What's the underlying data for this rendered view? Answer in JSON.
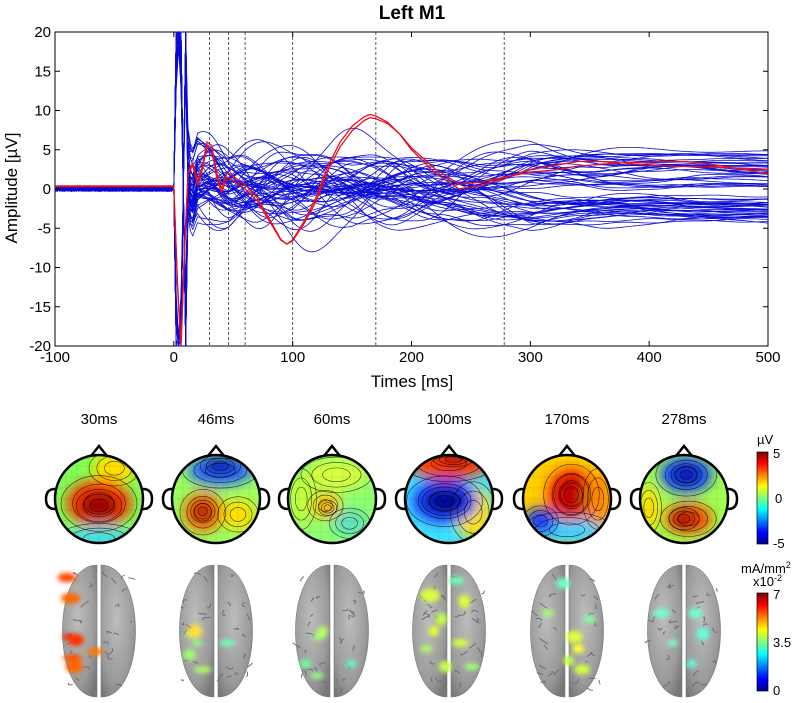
{
  "chart_data": [
    {
      "type": "line",
      "title": "Left M1",
      "xlabel": "Times [ms]",
      "ylabel": "Amplitude [µV]",
      "xlim": [
        -100,
        500
      ],
      "ylim": [
        -20,
        20
      ],
      "xticks": [
        -100,
        0,
        100,
        200,
        300,
        400,
        500
      ],
      "yticks": [
        -20,
        -15,
        -10,
        -5,
        0,
        5,
        10,
        15,
        20
      ],
      "grid": false,
      "markers_ms": [
        30,
        46,
        60,
        100,
        170,
        278
      ],
      "series": [
        {
          "color": "#e8101a",
          "x": [
            -100,
            -50,
            -5,
            0,
            3,
            6,
            9,
            12,
            16,
            20,
            24,
            28,
            32,
            36,
            40,
            45,
            50,
            55,
            60,
            70,
            80,
            90,
            95,
            100,
            110,
            120,
            130,
            140,
            150,
            160,
            165,
            170,
            180,
            190,
            200,
            220,
            240,
            260,
            280,
            300,
            320,
            340,
            360,
            380,
            400,
            450,
            500
          ],
          "y": [
            0.3,
            0.3,
            0.3,
            0.3,
            -12,
            -20,
            -8,
            2,
            3,
            0.5,
            2.5,
            5.5,
            5,
            1.5,
            -0.5,
            1.5,
            1,
            0.5,
            0,
            -1.5,
            -4,
            -6.5,
            -7,
            -6.5,
            -4,
            -1,
            3,
            6,
            8,
            9.2,
            9.5,
            9.3,
            8.5,
            7,
            5,
            2,
            0,
            0.5,
            1.5,
            2.5,
            3,
            3.5,
            3.5,
            3.3,
            3,
            2.8,
            2.5
          ]
        },
        {
          "color": "#0b0bd6",
          "x": [
            -100,
            -5,
            0,
            3,
            6,
            10,
            15,
            20,
            30,
            46,
            60,
            100,
            130,
            170,
            200,
            250,
            278,
            300,
            350,
            400,
            450,
            500
          ],
          "y": [
            0,
            0,
            0,
            20,
            -20,
            10,
            -5,
            3,
            2.5,
            0,
            1,
            0.5,
            0,
            0.5,
            1,
            0.5,
            0.5,
            1,
            1.5,
            1.5,
            1.2,
            1
          ],
          "note_series_count": 62
        }
      ]
    },
    {
      "type": "heatmap",
      "maps": [
        "30ms",
        "46ms",
        "60ms",
        "100ms",
        "170ms",
        "278ms"
      ],
      "colorbar": {
        "unit": "µV",
        "min": -5,
        "max": 5,
        "ticks": [
          "5",
          "0",
          "-5"
        ]
      }
    },
    {
      "type": "heatmap",
      "maps": [
        "30ms",
        "46ms",
        "60ms",
        "100ms",
        "170ms",
        "278ms"
      ],
      "colorbar": {
        "unit": "mA/mm",
        "unit_sup": "2",
        "scale": "x10",
        "scale_sup": "-2",
        "min": 0,
        "max": 7,
        "ticks": [
          "7",
          "3.5",
          "0"
        ]
      }
    }
  ]
}
